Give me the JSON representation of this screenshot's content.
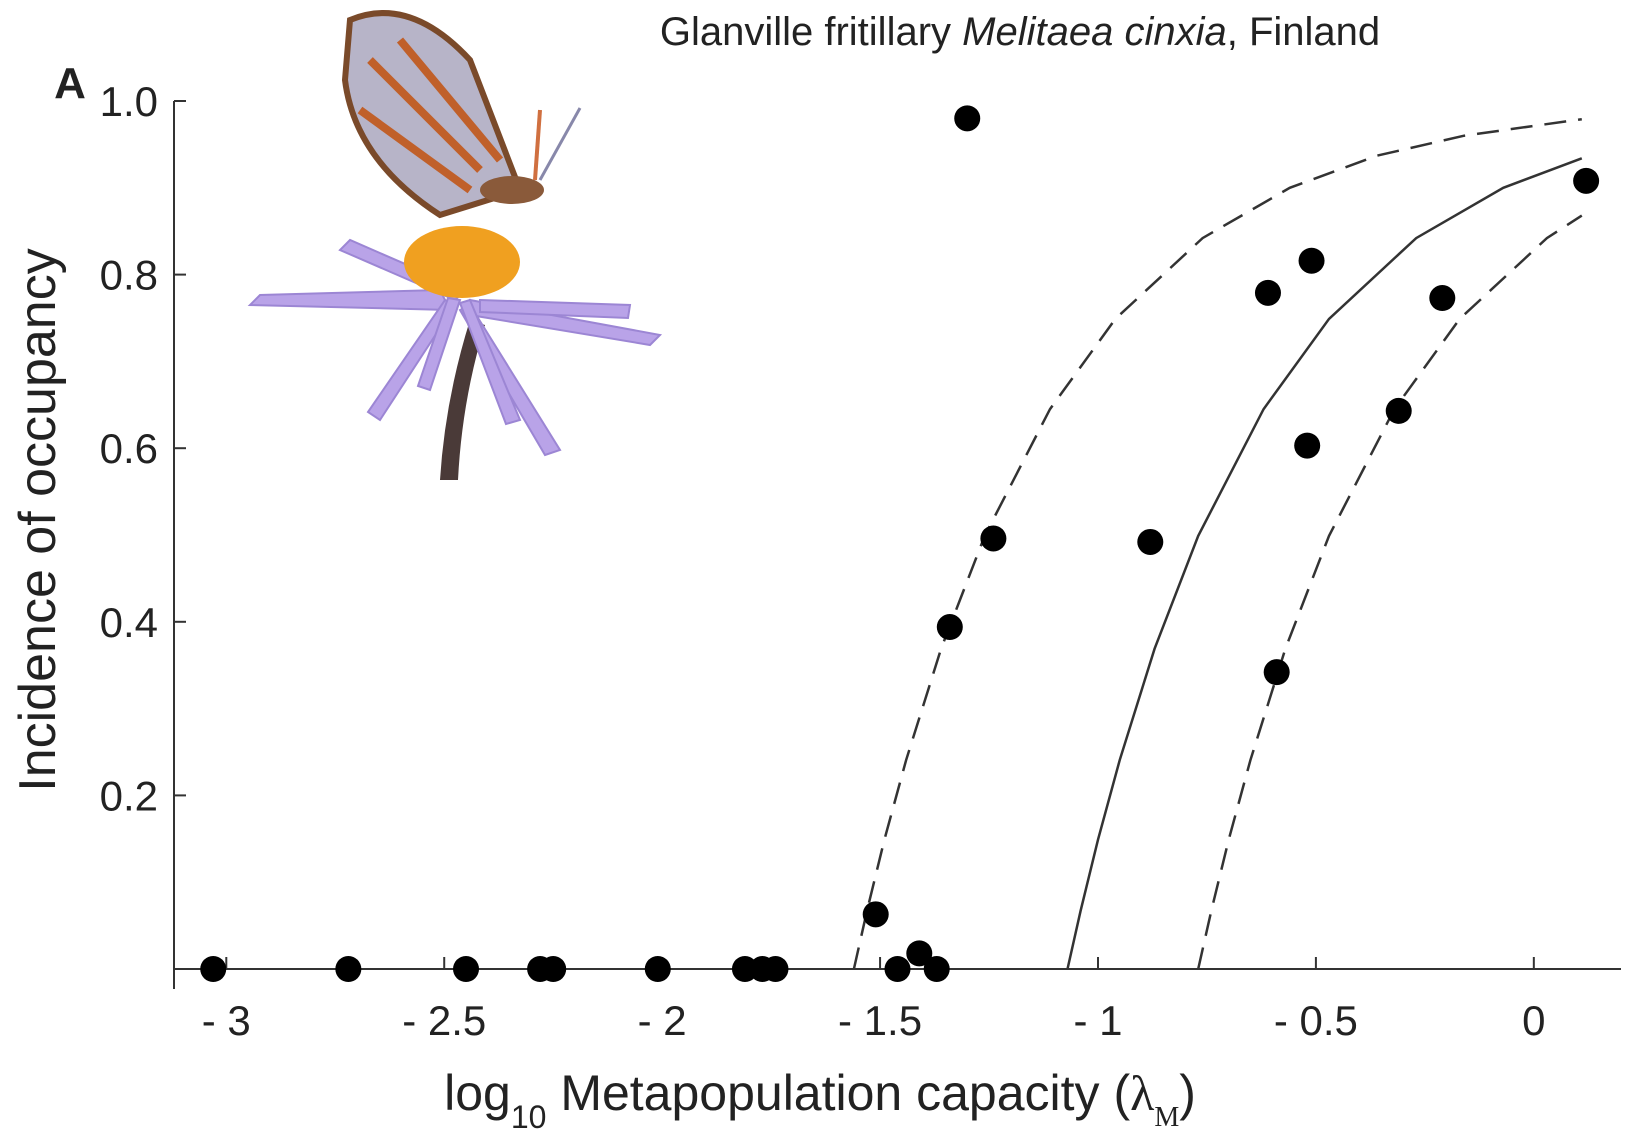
{
  "chart_data": {
    "type": "scatter",
    "panel_label": "A",
    "title": [
      "Glanville fritillary ",
      "Melitaea cinxia",
      ", Finland"
    ],
    "x_label": [
      "log",
      "10",
      " Metapopulation capacity (",
      "λ",
      "M",
      ")"
    ],
    "y_label": "Incidence of occupancy",
    "xlim": [
      -3.12,
      0.2
    ],
    "ylim": [
      0,
      1
    ],
    "xticks": [
      {
        "value": -3,
        "label": "- 3"
      },
      {
        "value": -2.5,
        "label": "- 2.5"
      },
      {
        "value": -2,
        "label": "- 2"
      },
      {
        "value": -1.5,
        "label": "- 1.5"
      },
      {
        "value": -1,
        "label": "- 1"
      },
      {
        "value": -0.5,
        "label": "- 0.5"
      },
      0
    ],
    "yticks": [
      0.2,
      0.4,
      0.6,
      0.8,
      {
        "value": 1,
        "label": "1.0"
      }
    ],
    "points": {
      "color": "#000000",
      "x": [
        -3.03,
        -2.72,
        -2.45,
        -2.28,
        -2.25,
        -2.01,
        -1.81,
        -1.77,
        -1.74,
        -1.51,
        -1.46,
        -1.41,
        -1.37,
        -1.34,
        -1.3,
        -1.24,
        -0.88,
        -0.61,
        -0.59,
        -0.52,
        -0.51,
        -0.31,
        -0.21,
        0.12
      ],
      "y": [
        0,
        0,
        0,
        0,
        0,
        0,
        0,
        0,
        0,
        0.063,
        0,
        0.018,
        0,
        0.394,
        0.98,
        0.496,
        0.492,
        0.779,
        0.342,
        0.603,
        0.816,
        0.643,
        0.773,
        0.908
      ]
    },
    "curves": [
      {
        "color": "#333333",
        "dashed": true,
        "x": [
          -1.56,
          -1.53,
          -1.49,
          -1.44,
          -1.36,
          -1.26,
          -1.11,
          -0.96,
          -0.76,
          -0.56,
          -0.36,
          -0.16,
          0.11
        ],
        "y": [
          0,
          0.067,
          0.149,
          0.241,
          0.369,
          0.499,
          0.645,
          0.749,
          0.842,
          0.9,
          0.937,
          0.96,
          0.979
        ]
      },
      {
        "color": "#333333",
        "dashed": false,
        "x": [
          -1.07,
          -1.04,
          -1.0,
          -0.95,
          -0.87,
          -0.77,
          -0.62,
          -0.47,
          -0.27,
          -0.07,
          0.11
        ],
        "y": [
          0,
          0.067,
          0.149,
          0.241,
          0.369,
          0.499,
          0.645,
          0.749,
          0.842,
          0.9,
          0.934
        ]
      },
      {
        "color": "#333333",
        "dashed": true,
        "x": [
          -0.77,
          -0.74,
          -0.7,
          -0.65,
          -0.57,
          -0.47,
          -0.32,
          -0.17,
          0.03,
          0.11
        ],
        "y": [
          0,
          0.067,
          0.149,
          0.241,
          0.369,
          0.499,
          0.645,
          0.749,
          0.842,
          0.868
        ]
      }
    ]
  }
}
